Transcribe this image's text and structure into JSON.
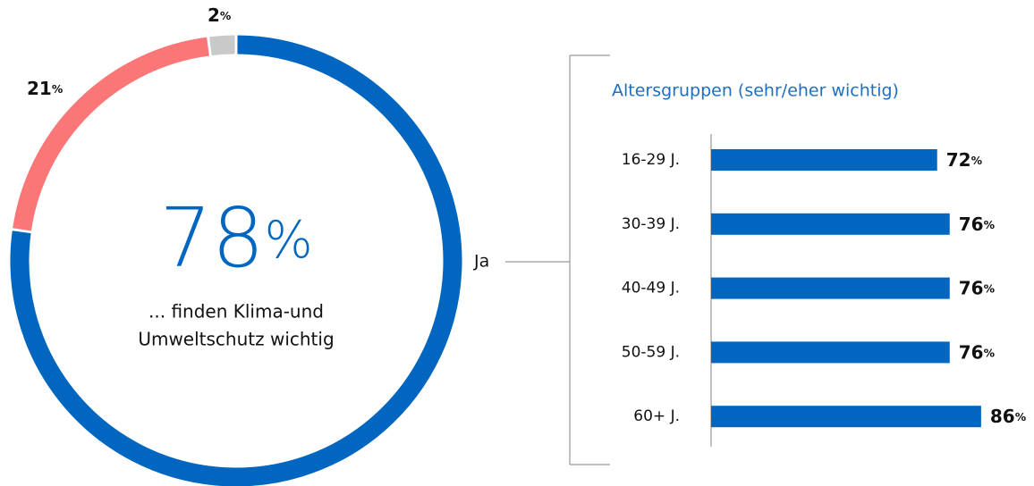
{
  "chart_data": [
    {
      "type": "donut",
      "categories": [
        "Ja",
        null,
        null
      ],
      "values": [
        78,
        21,
        2
      ],
      "unit": "%",
      "colors": [
        "#0066bf",
        "#fb7676",
        "#c9c9c9"
      ],
      "center_text": [
        "... finden Klima-und",
        "Umweltschutz wichtig"
      ]
    },
    {
      "type": "hbar",
      "title": "Altersgruppen (sehr/eher wichtig)",
      "categories": [
        "16-29 J.",
        "30-39 J.",
        "40-49 J.",
        "50-59 J.",
        "60+ J."
      ],
      "values": [
        72,
        76,
        76,
        76,
        86
      ],
      "unit": "%",
      "color": "#0066bf",
      "xlim": [
        0,
        100
      ]
    }
  ]
}
